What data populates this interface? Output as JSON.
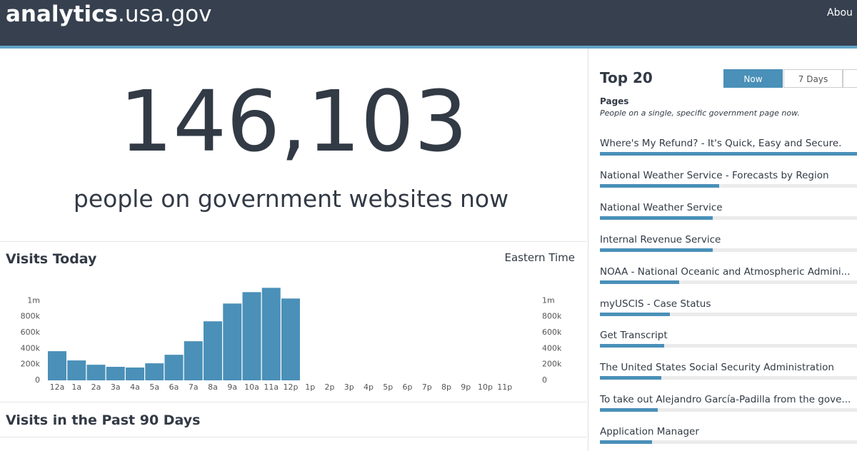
{
  "header": {
    "logo_bold": "analytics",
    "logo_rest": ".usa.gov",
    "nav": "Abou"
  },
  "hero": {
    "count": "146,103",
    "caption": "people on government websites now"
  },
  "visits_today": {
    "title": "Visits Today",
    "timezone": "Eastern Time",
    "chart_data": {
      "type": "bar",
      "color": "#4a90b8",
      "categories": [
        "12a",
        "1a",
        "2a",
        "3a",
        "4a",
        "5a",
        "6a",
        "7a",
        "8a",
        "9a",
        "10a",
        "11a",
        "12p",
        "1p",
        "2p",
        "3p",
        "4p",
        "5p",
        "6p",
        "7p",
        "8p",
        "9p",
        "10p",
        "11p"
      ],
      "values": [
        366000,
        250000,
        196000,
        170000,
        161000,
        214000,
        321000,
        491000,
        741000,
        964000,
        1107000,
        1161000,
        1027000,
        null,
        null,
        null,
        null,
        null,
        null,
        null,
        null,
        null,
        null,
        null
      ],
      "ylim": [
        0,
        1200000
      ],
      "yticks": [
        0,
        {
          "value": 200000,
          "label": "200k"
        },
        {
          "value": 400000,
          "label": "400k"
        },
        {
          "value": 600000,
          "label": "600k"
        },
        {
          "value": 800000,
          "label": "800k"
        },
        {
          "value": 1000000,
          "label": "1m"
        }
      ],
      "y2lim": [
        0,
        1200000
      ],
      "y2ticks": [
        0,
        {
          "value": 200000,
          "label": "200k"
        },
        {
          "value": 400000,
          "label": "400k"
        },
        {
          "value": 600000,
          "label": "600k"
        },
        {
          "value": 800000,
          "label": "800k"
        },
        {
          "value": 1000000,
          "label": "1m"
        }
      ],
      "grid": false
    }
  },
  "past_90": {
    "title": "Visits in the Past 90 Days"
  },
  "top20": {
    "title": "Top 20",
    "tabs": [
      "Now",
      "7 Days"
    ],
    "active_tab": 0,
    "section": "Pages",
    "description": "People on a single, specific government page now.",
    "items": [
      {
        "label": "Where's My Refund? - It's Quick, Easy and Secure.",
        "value": 360
      },
      {
        "label": "National Weather Service - Forecasts by Region",
        "value": 167
      },
      {
        "label": "National Weather Service",
        "value": 158
      },
      {
        "label": "Internal Revenue Service",
        "value": 158
      },
      {
        "label": "NOAA - National Oceanic and Atmospheric Admini...",
        "value": 111
      },
      {
        "label": "myUSCIS - Case Status",
        "value": 98
      },
      {
        "label": "Get Transcript",
        "value": 90
      },
      {
        "label": "The United States Social Security Administration",
        "value": 86
      },
      {
        "label": "To take out Alejandro García-Padilla from the gove...",
        "value": 81
      },
      {
        "label": "Application Manager",
        "value": 73
      }
    ]
  }
}
